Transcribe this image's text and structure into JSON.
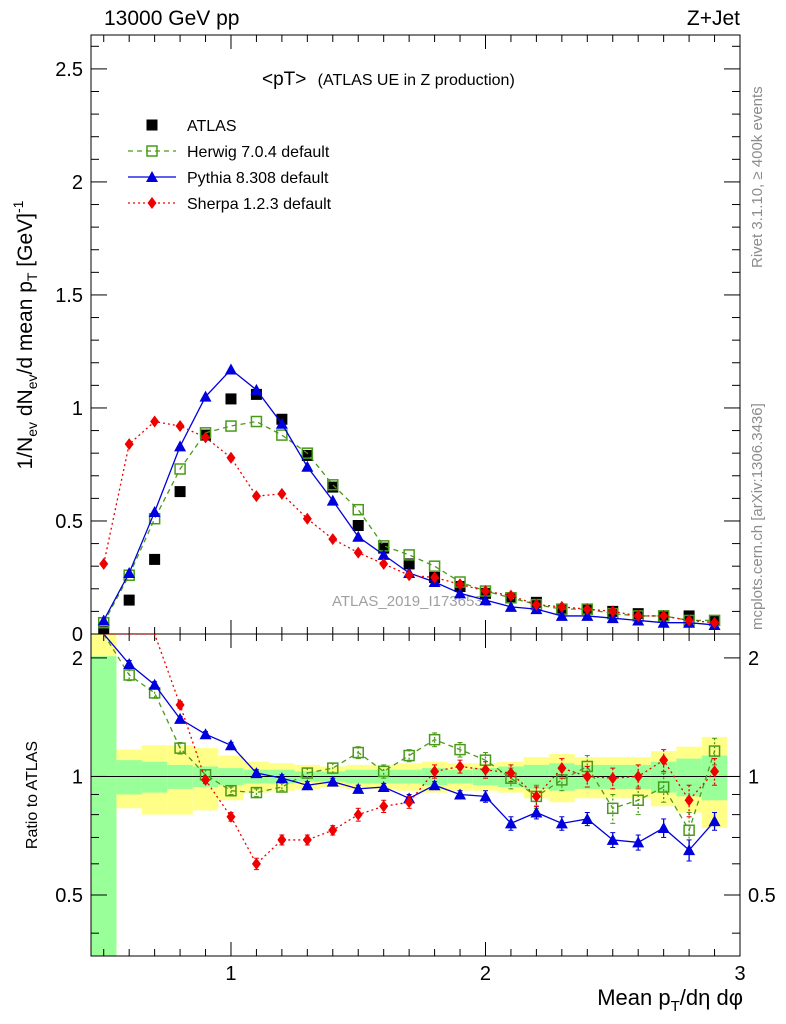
{
  "header": {
    "left": "13000 GeV pp",
    "right": "Z+Jet"
  },
  "side_text": {
    "top": "Rivet 3.1.10, ≥ 400k events",
    "bottom": "mcplots.cern.ch [arXiv:1306.3436]"
  },
  "watermark": "ATLAS_2019_I1736531",
  "chart_data": {
    "type": "scatter",
    "title": "<pT>",
    "subtitle": "(ATLAS UE in Z production)",
    "ylabel_main": "1/N_ev dN_ev/d mean p_T [GeV]^-1",
    "ylabel_ratio": "Ratio to ATLAS",
    "xlabel": "Mean p_T/dη dφ",
    "xlim": [
      0.45,
      3.0
    ],
    "ylim_main": [
      0,
      2.65
    ],
    "ylim_ratio": [
      0.35,
      2.3
    ],
    "xticks": [
      1,
      2,
      3
    ],
    "yticks_main": [
      0,
      0.5,
      1,
      1.5,
      2,
      2.5
    ],
    "yticks_ratio": [
      0.5,
      1,
      2
    ],
    "x": [
      0.5,
      0.6,
      0.7,
      0.8,
      0.9,
      1.0,
      1.1,
      1.2,
      1.3,
      1.4,
      1.5,
      1.6,
      1.7,
      1.8,
      1.9,
      2.0,
      2.1,
      2.2,
      2.3,
      2.4,
      2.5,
      2.6,
      2.7,
      2.8,
      2.9
    ],
    "series": [
      {
        "name": "ATLAS",
        "color": "#000000",
        "marker": "square-filled",
        "values": [
          0.01,
          0.15,
          0.33,
          0.63,
          0.88,
          1.04,
          1.06,
          0.95,
          0.79,
          0.65,
          0.48,
          0.38,
          0.31,
          0.25,
          0.21,
          0.18,
          0.16,
          0.14,
          0.11,
          0.11,
          0.1,
          0.09,
          0.08,
          0.08,
          0.06
        ],
        "band_yellow": [
          [
            0.35,
            2.3
          ],
          [
            0.83,
            1.17
          ],
          [
            0.8,
            1.2
          ],
          [
            0.8,
            1.2
          ],
          [
            0.82,
            1.18
          ],
          [
            0.87,
            1.13
          ],
          [
            0.91,
            1.09
          ],
          [
            0.92,
            1.08
          ],
          [
            0.93,
            1.07
          ],
          [
            0.94,
            1.06
          ],
          [
            0.93,
            1.07
          ],
          [
            0.93,
            1.07
          ],
          [
            0.92,
            1.08
          ],
          [
            0.91,
            1.09
          ],
          [
            0.92,
            1.08
          ],
          [
            0.92,
            1.08
          ],
          [
            0.91,
            1.09
          ],
          [
            0.88,
            1.12
          ],
          [
            0.86,
            1.14
          ],
          [
            0.88,
            1.12
          ],
          [
            0.88,
            1.12
          ],
          [
            0.88,
            1.12
          ],
          [
            0.84,
            1.16
          ],
          [
            0.81,
            1.19
          ],
          [
            0.74,
            1.26
          ]
        ],
        "band_green": [
          [
            0.35,
            2.02
          ],
          [
            0.9,
            1.1
          ],
          [
            0.91,
            1.09
          ],
          [
            0.93,
            1.07
          ],
          [
            0.94,
            1.06
          ],
          [
            0.95,
            1.05
          ],
          [
            0.96,
            1.04
          ],
          [
            0.96,
            1.04
          ],
          [
            0.97,
            1.03
          ],
          [
            0.97,
            1.03
          ],
          [
            0.96,
            1.04
          ],
          [
            0.96,
            1.04
          ],
          [
            0.96,
            1.04
          ],
          [
            0.95,
            1.05
          ],
          [
            0.96,
            1.04
          ],
          [
            0.95,
            1.05
          ],
          [
            0.94,
            1.06
          ],
          [
            0.93,
            1.07
          ],
          [
            0.92,
            1.08
          ],
          [
            0.93,
            1.07
          ],
          [
            0.93,
            1.07
          ],
          [
            0.93,
            1.07
          ],
          [
            0.91,
            1.09
          ],
          [
            0.89,
            1.11
          ],
          [
            0.87,
            1.13
          ]
        ]
      },
      {
        "name": "Herwig 7.0.4 default",
        "color": "#4a9a1a",
        "marker": "square-open",
        "line": "dashed",
        "values": [
          0.05,
          0.26,
          0.51,
          0.73,
          0.89,
          0.92,
          0.94,
          0.88,
          0.8,
          0.66,
          0.55,
          0.39,
          0.35,
          0.3,
          0.23,
          0.19,
          0.16,
          0.13,
          0.11,
          0.11,
          0.09,
          0.08,
          0.08,
          0.06,
          0.06
        ],
        "ratio": [
          null,
          1.81,
          1.63,
          1.18,
          1.01,
          0.92,
          0.91,
          0.94,
          1.02,
          1.05,
          1.15,
          1.03,
          1.13,
          1.24,
          1.17,
          1.1,
          0.99,
          0.89,
          0.98,
          1.06,
          0.83,
          0.87,
          0.94,
          0.73,
          1.16
        ],
        "ratio_err": [
          0,
          0.06,
          0.05,
          0.04,
          0.03,
          0.02,
          0.02,
          0.02,
          0.03,
          0.03,
          0.04,
          0.04,
          0.04,
          0.05,
          0.05,
          0.05,
          0.06,
          0.06,
          0.06,
          0.07,
          0.07,
          0.07,
          0.08,
          0.08,
          0.09
        ]
      },
      {
        "name": "Pythia 8.308 default",
        "color": "#0000dd",
        "marker": "triangle-filled",
        "line": "solid",
        "values": [
          0.06,
          0.27,
          0.54,
          0.83,
          1.05,
          1.17,
          1.08,
          0.93,
          0.74,
          0.59,
          0.43,
          0.35,
          0.27,
          0.23,
          0.18,
          0.15,
          0.12,
          0.11,
          0.08,
          0.08,
          0.07,
          0.06,
          0.05,
          0.05,
          0.04
        ],
        "ratio": [
          null,
          1.93,
          1.71,
          1.4,
          1.28,
          1.2,
          1.02,
          0.99,
          0.95,
          0.97,
          0.93,
          0.94,
          0.88,
          0.95,
          0.9,
          0.89,
          0.76,
          0.81,
          0.76,
          0.78,
          0.69,
          0.68,
          0.74,
          0.65,
          0.77
        ],
        "ratio_err": [
          0,
          0.04,
          0.03,
          0.02,
          0.02,
          0.02,
          0.02,
          0.02,
          0.02,
          0.02,
          0.02,
          0.02,
          0.02,
          0.02,
          0.02,
          0.03,
          0.03,
          0.03,
          0.03,
          0.03,
          0.03,
          0.03,
          0.04,
          0.04,
          0.04
        ]
      },
      {
        "name": "Sherpa 1.2.3 default",
        "color": "#ee0000",
        "marker": "diamond-filled",
        "line": "dotted",
        "values": [
          0.31,
          0.84,
          0.94,
          0.92,
          0.87,
          0.78,
          0.61,
          0.62,
          0.51,
          0.42,
          0.36,
          0.31,
          0.26,
          0.25,
          0.22,
          0.19,
          0.17,
          0.13,
          0.12,
          0.11,
          0.1,
          0.08,
          0.08,
          0.06,
          0.05
        ],
        "ratio": [
          null,
          null,
          null,
          1.52,
          0.98,
          0.79,
          0.6,
          0.69,
          0.69,
          0.73,
          0.8,
          0.84,
          0.86,
          1.03,
          1.06,
          1.04,
          1.02,
          0.89,
          1.05,
          1.0,
          0.99,
          1.0,
          1.1,
          0.87,
          1.03
        ],
        "ratio_err": [
          0,
          0,
          0,
          0.03,
          0.02,
          0.02,
          0.02,
          0.02,
          0.02,
          0.02,
          0.03,
          0.03,
          0.03,
          0.04,
          0.04,
          0.05,
          0.05,
          0.05,
          0.06,
          0.06,
          0.06,
          0.07,
          0.07,
          0.08,
          0.08
        ]
      }
    ]
  }
}
